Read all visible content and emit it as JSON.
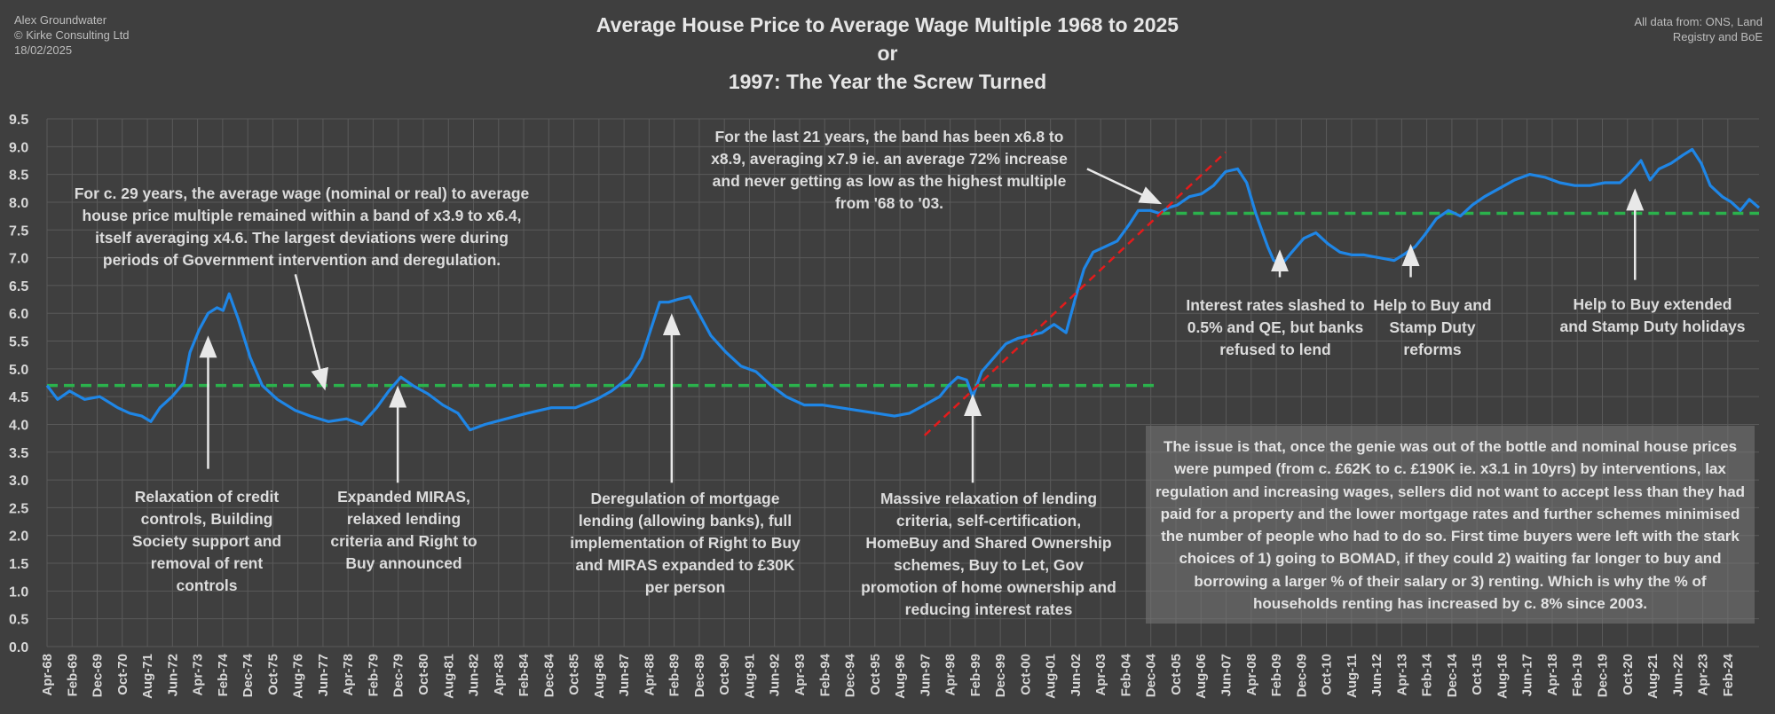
{
  "meta": {
    "author": "Alex Groundwater",
    "company": "© Kirke Consulting Ltd",
    "date": "18/02/2025",
    "source": "All data from: ONS, Land Registry and BoE"
  },
  "title": {
    "line1": "Average House Price to Average Wage Multiple 1968 to 2025",
    "line2": "or",
    "line3": "1997: The Year the Screw Turned"
  },
  "annotations": {
    "band_1968": "For c. 29 years, the average wage (nominal or real) to average house price multiple remained within a band of x3.9 to x6.4, itself averaging x4.6. The largest deviations were during periods of Government intervention and deregulation.",
    "band_2004": "For the last 21 years, the band has been x6.8 to x8.9, averaging x7.9 ie. an average 72% increase and never getting as low as the highest multiple from '68 to '03.",
    "credit_controls": "Relaxation of credit controls, Building Society support and removal of rent controls",
    "miras": "Expanded MIRAS, relaxed lending criteria and Right to Buy announced",
    "deregulation": "Deregulation of mortgage lending (allowing banks), full implementation of Right to Buy and MIRAS expanded to £30K per person",
    "massive_relaxation": "Massive relaxation of lending criteria, self-certification, HomeBuy and Shared Ownership schemes, Buy to Let, Gov promotion of home ownership and reducing interest rates",
    "interest_rates": "Interest rates slashed to 0.5% and QE, but banks refused to lend",
    "help_to_buy": "Help to Buy and Stamp Duty reforms",
    "help_to_buy_ext": "Help to Buy extended and Stamp Duty holidays",
    "callout": "The issue is that, once the genie was out of the bottle and nominal house prices were pumped (from c. £62K to c. £190K ie. x3.1 in 10yrs) by interventions, lax regulation and increasing wages, sellers did not want to accept less than they had paid for a property and the lower mortgage rates and further schemes minimised the number of people who had to do so. First time buyers were left with the stark choices of 1) going to BOMAD, if they could 2) waiting far longer to buy and borrowing a larger % of their salary or 3) renting. Which is why the % of households renting has increased by c. 8% since 2003."
  },
  "colors": {
    "background": "#3f3f3f",
    "grid": "#5a5a5a",
    "series": "#1f86e6",
    "average_line": "#2bb24c",
    "trend_line": "#e31b1b",
    "arrow": "#e8e8e8",
    "text": "#d8d8d8"
  },
  "chart_data": {
    "type": "line",
    "ylim": [
      0,
      9.5
    ],
    "yticks": [
      "0.0",
      "0.5",
      "1.0",
      "1.5",
      "2.0",
      "2.5",
      "3.0",
      "3.5",
      "4.0",
      "4.5",
      "5.0",
      "5.5",
      "6.0",
      "6.5",
      "7.0",
      "7.5",
      "8.0",
      "8.5",
      "9.0",
      "9.5"
    ],
    "xlim": [
      1968.25,
      2025.12
    ],
    "xticks": [
      "Apr-68",
      "Feb-69",
      "Dec-69",
      "Oct-70",
      "Aug-71",
      "Jun-72",
      "Apr-73",
      "Feb-74",
      "Dec-74",
      "Oct-75",
      "Aug-76",
      "Jun-77",
      "Apr-78",
      "Feb-79",
      "Dec-79",
      "Oct-80",
      "Aug-81",
      "Jun-82",
      "Apr-83",
      "Feb-84",
      "Dec-84",
      "Oct-85",
      "Aug-86",
      "Jun-87",
      "Apr-88",
      "Feb-89",
      "Dec-89",
      "Oct-90",
      "Aug-91",
      "Jun-92",
      "Apr-93",
      "Feb-94",
      "Dec-94",
      "Oct-95",
      "Aug-96",
      "Jun-97",
      "Apr-98",
      "Feb-99",
      "Dec-99",
      "Oct-00",
      "Aug-01",
      "Jun-02",
      "Apr-03",
      "Feb-04",
      "Dec-04",
      "Oct-05",
      "Aug-06",
      "Jun-07",
      "Apr-08",
      "Feb-09",
      "Dec-09",
      "Oct-10",
      "Aug-11",
      "Jun-12",
      "Apr-13",
      "Feb-14",
      "Dec-14",
      "Oct-15",
      "Aug-16",
      "Jun-17",
      "Apr-18",
      "Feb-19",
      "Dec-19",
      "Oct-20",
      "Aug-21",
      "Jun-22",
      "Apr-23",
      "Feb-24"
    ],
    "series": [
      {
        "values": [
          [
            1968.25,
            4.7
          ],
          [
            1968.6,
            4.45
          ],
          [
            1969.0,
            4.6
          ],
          [
            1969.5,
            4.45
          ],
          [
            1970.0,
            4.5
          ],
          [
            1970.6,
            4.3
          ],
          [
            1971.0,
            4.2
          ],
          [
            1971.4,
            4.15
          ],
          [
            1971.7,
            4.05
          ],
          [
            1972.0,
            4.3
          ],
          [
            1972.4,
            4.5
          ],
          [
            1972.8,
            4.75
          ],
          [
            1973.0,
            5.3
          ],
          [
            1973.3,
            5.7
          ],
          [
            1973.6,
            6.0
          ],
          [
            1973.9,
            6.1
          ],
          [
            1974.1,
            6.05
          ],
          [
            1974.3,
            6.35
          ],
          [
            1974.6,
            5.9
          ],
          [
            1975.0,
            5.2
          ],
          [
            1975.4,
            4.7
          ],
          [
            1975.9,
            4.45
          ],
          [
            1976.5,
            4.25
          ],
          [
            1977.0,
            4.15
          ],
          [
            1977.6,
            4.05
          ],
          [
            1978.2,
            4.1
          ],
          [
            1978.7,
            4.0
          ],
          [
            1979.2,
            4.3
          ],
          [
            1979.6,
            4.6
          ],
          [
            1980.0,
            4.85
          ],
          [
            1980.4,
            4.7
          ],
          [
            1980.9,
            4.55
          ],
          [
            1981.4,
            4.35
          ],
          [
            1981.9,
            4.2
          ],
          [
            1982.3,
            3.9
          ],
          [
            1982.8,
            4.0
          ],
          [
            1983.5,
            4.1
          ],
          [
            1984.2,
            4.2
          ],
          [
            1985.0,
            4.3
          ],
          [
            1985.8,
            4.3
          ],
          [
            1986.5,
            4.45
          ],
          [
            1987.0,
            4.6
          ],
          [
            1987.6,
            4.85
          ],
          [
            1988.0,
            5.2
          ],
          [
            1988.3,
            5.7
          ],
          [
            1988.6,
            6.2
          ],
          [
            1988.9,
            6.2
          ],
          [
            1989.2,
            6.25
          ],
          [
            1989.6,
            6.3
          ],
          [
            1989.9,
            6.0
          ],
          [
            1990.3,
            5.6
          ],
          [
            1990.8,
            5.3
          ],
          [
            1991.3,
            5.05
          ],
          [
            1991.8,
            4.95
          ],
          [
            1992.3,
            4.7
          ],
          [
            1992.8,
            4.5
          ],
          [
            1993.4,
            4.35
          ],
          [
            1994.0,
            4.35
          ],
          [
            1994.6,
            4.3
          ],
          [
            1995.2,
            4.25
          ],
          [
            1995.8,
            4.2
          ],
          [
            1996.4,
            4.15
          ],
          [
            1996.9,
            4.2
          ],
          [
            1997.4,
            4.35
          ],
          [
            1997.9,
            4.5
          ],
          [
            1998.2,
            4.7
          ],
          [
            1998.5,
            4.85
          ],
          [
            1998.8,
            4.8
          ],
          [
            1999.0,
            4.5
          ],
          [
            1999.3,
            4.95
          ],
          [
            1999.7,
            5.2
          ],
          [
            2000.1,
            5.45
          ],
          [
            2000.5,
            5.55
          ],
          [
            2000.9,
            5.6
          ],
          [
            2001.3,
            5.65
          ],
          [
            2001.7,
            5.8
          ],
          [
            2002.1,
            5.65
          ],
          [
            2002.4,
            6.25
          ],
          [
            2002.7,
            6.8
          ],
          [
            2003.0,
            7.1
          ],
          [
            2003.4,
            7.2
          ],
          [
            2003.8,
            7.3
          ],
          [
            2004.2,
            7.6
          ],
          [
            2004.5,
            7.85
          ],
          [
            2004.9,
            7.85
          ],
          [
            2005.2,
            7.8
          ],
          [
            2005.5,
            7.9
          ],
          [
            2005.8,
            7.95
          ],
          [
            2006.2,
            8.1
          ],
          [
            2006.6,
            8.15
          ],
          [
            2007.0,
            8.3
          ],
          [
            2007.4,
            8.55
          ],
          [
            2007.8,
            8.6
          ],
          [
            2008.1,
            8.35
          ],
          [
            2008.4,
            7.8
          ],
          [
            2008.8,
            7.2
          ],
          [
            2009.0,
            6.95
          ],
          [
            2009.3,
            6.9
          ],
          [
            2009.6,
            7.1
          ],
          [
            2010.0,
            7.35
          ],
          [
            2010.4,
            7.45
          ],
          [
            2010.8,
            7.25
          ],
          [
            2011.2,
            7.1
          ],
          [
            2011.6,
            7.05
          ],
          [
            2012.0,
            7.05
          ],
          [
            2012.5,
            7.0
          ],
          [
            2013.0,
            6.95
          ],
          [
            2013.3,
            7.05
          ],
          [
            2013.7,
            7.2
          ],
          [
            2014.0,
            7.4
          ],
          [
            2014.4,
            7.7
          ],
          [
            2014.8,
            7.85
          ],
          [
            2015.2,
            7.75
          ],
          [
            2015.6,
            7.95
          ],
          [
            2016.0,
            8.1
          ],
          [
            2016.5,
            8.25
          ],
          [
            2017.0,
            8.4
          ],
          [
            2017.5,
            8.5
          ],
          [
            2018.0,
            8.45
          ],
          [
            2018.5,
            8.35
          ],
          [
            2019.0,
            8.3
          ],
          [
            2019.5,
            8.3
          ],
          [
            2020.0,
            8.35
          ],
          [
            2020.5,
            8.35
          ],
          [
            2020.8,
            8.5
          ],
          [
            2021.2,
            8.75
          ],
          [
            2021.5,
            8.4
          ],
          [
            2021.8,
            8.6
          ],
          [
            2022.2,
            8.7
          ],
          [
            2022.6,
            8.85
          ],
          [
            2022.9,
            8.95
          ],
          [
            2023.2,
            8.7
          ],
          [
            2023.5,
            8.3
          ],
          [
            2023.9,
            8.1
          ],
          [
            2024.2,
            8.0
          ],
          [
            2024.5,
            7.85
          ],
          [
            2024.8,
            8.05
          ],
          [
            2025.12,
            7.9
          ]
        ]
      }
    ],
    "reference_lines": [
      {
        "style": "dashed",
        "color": "#2bb24c",
        "x": [
          1968.25,
          2005.2
        ],
        "y": 4.7
      },
      {
        "style": "dashed",
        "color": "#2bb24c",
        "x": [
          2005.2,
          2025.12
        ],
        "y": 7.8
      }
    ],
    "trend_line": {
      "style": "dashed",
      "color": "#e31b1b",
      "x": [
        1997.4,
        2007.4
      ],
      "y": [
        3.8,
        8.9
      ]
    },
    "arrows": [
      {
        "from": [
          1973.6,
          3.2
        ],
        "to": [
          1973.6,
          5.4
        ]
      },
      {
        "from": [
          1976.5,
          6.7
        ],
        "to": [
          1977.4,
          4.8
        ]
      },
      {
        "from": [
          1979.9,
          2.95
        ],
        "to": [
          1979.9,
          4.5
        ]
      },
      {
        "from": [
          1989.0,
          2.95
        ],
        "to": [
          1989.0,
          5.8
        ]
      },
      {
        "from": [
          1999.0,
          2.95
        ],
        "to": [
          1999.0,
          4.35
        ]
      },
      {
        "from": [
          2002.8,
          8.6
        ],
        "to": [
          2004.95,
          8.05
        ]
      },
      {
        "from": [
          2009.2,
          6.65
        ],
        "to": [
          2009.2,
          6.95
        ]
      },
      {
        "from": [
          2013.55,
          6.65
        ],
        "to": [
          2013.55,
          7.05
        ]
      },
      {
        "from": [
          2021.0,
          6.6
        ],
        "to": [
          2021.0,
          8.05
        ]
      }
    ]
  }
}
